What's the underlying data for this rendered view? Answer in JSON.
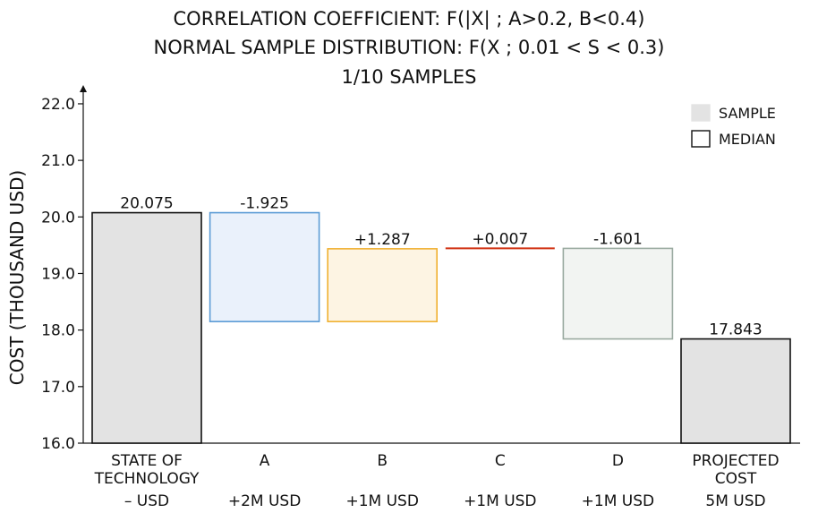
{
  "chart_data": {
    "type": "bar",
    "subtype": "waterfall",
    "title": [
      "CORRELATION COEFFICIENT: F(|X| ; A>0.2, B<0.4)",
      "NORMAL SAMPLE DISTRIBUTION: F(X ; 0.01 < S < 0.3)",
      "1/10 SAMPLES"
    ],
    "ylabel": "COST (THOUSAND USD)",
    "ylim": [
      16.0,
      22.3
    ],
    "yticks": [
      "16.0",
      "17.0",
      "18.0",
      "19.0",
      "20.0",
      "21.0",
      "22.0"
    ],
    "ytick_values": [
      16,
      17,
      18,
      19,
      20,
      21,
      22
    ],
    "legend": {
      "placement": "top-right",
      "items": [
        {
          "label": "SAMPLE",
          "fill": "#e3e3e3",
          "stroke": "#e3e3e3"
        },
        {
          "label": "MEDIAN",
          "fill": "#ffffff",
          "stroke": "#111111"
        }
      ]
    },
    "categories": [
      {
        "line1": "STATE OF",
        "line2": "TECHNOLOGY",
        "line3": "– USD"
      },
      {
        "line1": "A",
        "line2": "",
        "line3": "+2M USD"
      },
      {
        "line1": "B",
        "line2": "",
        "line3": "+1M USD"
      },
      {
        "line1": "C",
        "line2": "",
        "line3": "+1M USD"
      },
      {
        "line1": "D",
        "line2": "",
        "line3": "+1M USD"
      },
      {
        "line1": "PROJECTED",
        "line2": "COST",
        "line3": "5M USD"
      }
    ],
    "bars": [
      {
        "kind": "total",
        "bottom": 16.0,
        "top": 20.075,
        "label": "20.075",
        "fill": "#e3e3e3",
        "stroke": "#111111"
      },
      {
        "kind": "delta",
        "bottom": 18.15,
        "top": 20.075,
        "label": "-1.925",
        "fill": "#eaf1fb",
        "stroke": "#5b9bd5"
      },
      {
        "kind": "delta",
        "bottom": 18.15,
        "top": 19.437,
        "label": "+1.287",
        "fill": "#fdf4e3",
        "stroke": "#f0b030"
      },
      {
        "kind": "delta",
        "bottom": 19.437,
        "top": 19.444,
        "label": "+0.007",
        "fill": "#fde0d8",
        "stroke": "#d03010"
      },
      {
        "kind": "delta",
        "bottom": 17.843,
        "top": 19.444,
        "label": "-1.601",
        "fill": "#f2f4f2",
        "stroke": "#9aaaa0"
      },
      {
        "kind": "total",
        "bottom": 16.0,
        "top": 17.843,
        "label": "17.843",
        "fill": "#e3e3e3",
        "stroke": "#111111"
      }
    ]
  }
}
